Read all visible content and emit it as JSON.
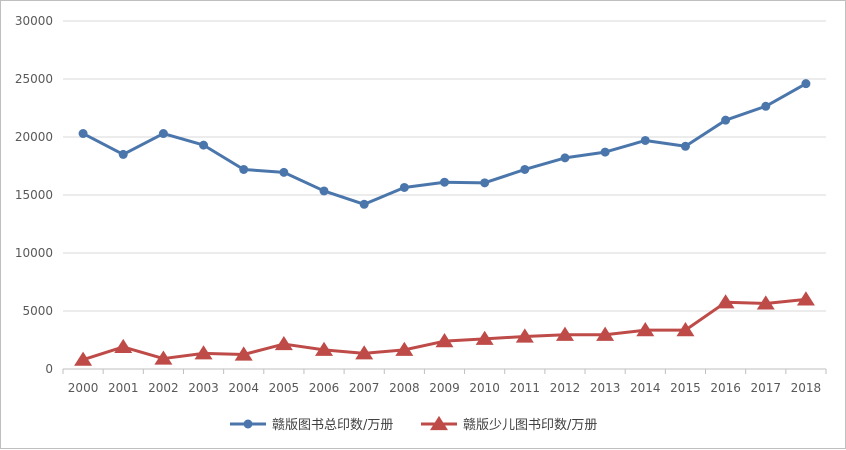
{
  "chart_data": {
    "type": "line",
    "title": "",
    "xlabel": "",
    "ylabel": "",
    "x": [
      "2000",
      "2001",
      "2002",
      "2003",
      "2004",
      "2005",
      "2006",
      "2007",
      "2008",
      "2009",
      "2010",
      "2011",
      "2012",
      "2013",
      "2014",
      "2015",
      "2016",
      "2017",
      "2018"
    ],
    "ylim": [
      0,
      30000
    ],
    "yticks": [
      0,
      5000,
      10000,
      15000,
      20000,
      25000,
      30000
    ],
    "grid": true,
    "legend_position": "bottom",
    "series": [
      {
        "name": "赣版图书总印数/万册",
        "color": "#4a76ab",
        "marker": "circle",
        "values": [
          20300,
          18500,
          20300,
          19300,
          17200,
          16950,
          15350,
          14200,
          15650,
          16100,
          16050,
          17200,
          18200,
          18700,
          19700,
          19200,
          21450,
          22650,
          24600
        ]
      },
      {
        "name": "赣版少儿图书印数/万册",
        "color": "#be4b48",
        "marker": "triangle",
        "values": [
          800,
          1900,
          900,
          1350,
          1250,
          2150,
          1650,
          1350,
          1650,
          2400,
          2600,
          2800,
          2950,
          2950,
          3350,
          3350,
          5750,
          5650,
          6000
        ]
      }
    ]
  }
}
